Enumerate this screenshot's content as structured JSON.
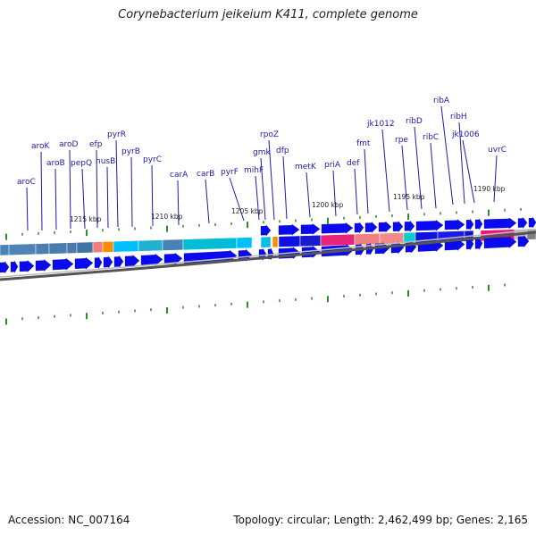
{
  "title": "Corynebacterium jeikeium K411, complete genome",
  "accession": "Accession: NC_007164",
  "summary": "Topology: circular; Length: 2,462,499 bp; Genes: 2,165",
  "colors": {
    "label": "#1a1ab0",
    "leader": "#1a1ab0",
    "tick": "#2e8b2e",
    "forward_arrow": "#0a0af0",
    "backbone": "#808080"
  },
  "kbp_labels": [
    "1215 kbp",
    "1210 kbp",
    "1205 kbp",
    "1200 kbp",
    "1195 kbp",
    "1190 kbp"
  ],
  "genes": [
    "aroC",
    "aroK",
    "aroB",
    "aroD",
    "pepQ",
    "efp",
    "nusB",
    "pyrR",
    "pyrB",
    "pyrC",
    "carA",
    "carB",
    "pyrF",
    "mihF",
    "gmk",
    "rpoZ",
    "dfp",
    "metK",
    "priA",
    "def",
    "fmt",
    "jk1012",
    "rpe",
    "ribD",
    "ribC",
    "ribA",
    "ribH",
    "jk1006",
    "uvrC"
  ]
}
